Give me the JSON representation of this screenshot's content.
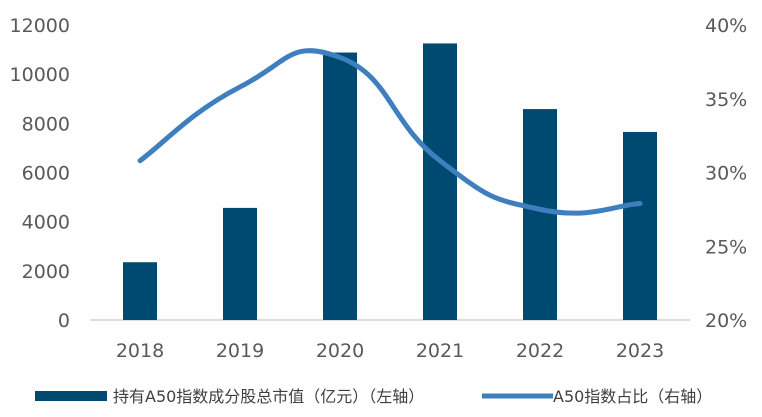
{
  "chart_data": {
    "type": "bar",
    "categories": [
      "2018",
      "2019",
      "2020",
      "2021",
      "2022",
      "2023"
    ],
    "series": [
      {
        "name": "持有A50指数成分股总市值（亿元）（左轴）",
        "type": "bar",
        "axis": "left",
        "color": "#004a72",
        "values": [
          2350,
          4560,
          10880,
          11250,
          8580,
          7650
        ]
      },
      {
        "name": "A50指数占比（右轴）",
        "type": "line",
        "axis": "right",
        "color": "#3f7fbf",
        "values": [
          30.8,
          35.8,
          37.8,
          30.8,
          27.5,
          27.9
        ]
      }
    ],
    "left_axis": {
      "min": 0,
      "max": 12000,
      "step": 2000,
      "ticks": [
        "0",
        "2000",
        "4000",
        "6000",
        "8000",
        "10000",
        "12000"
      ]
    },
    "right_axis": {
      "min": 20,
      "max": 40,
      "step": 5,
      "ticks": [
        "20%",
        "25%",
        "30%",
        "35%",
        "40%"
      ]
    },
    "grid": false,
    "legend_position": "bottom"
  }
}
